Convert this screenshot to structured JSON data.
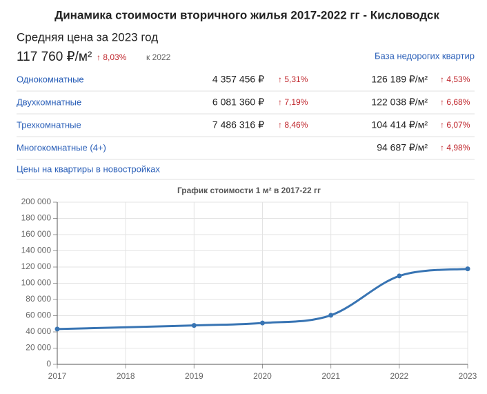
{
  "header": {
    "title": "Динамика стоимости вторичного жилья 2017-2022 гг - Кисловодск",
    "subtitle": "Средняя цена за 2023 год",
    "price": "117 760 ₽/м²",
    "change": "↑ 8,03%",
    "compare": "к 2022",
    "link": "База недорогих квартир"
  },
  "table": {
    "rows": [
      {
        "name": "Однокомнатные",
        "price": "4 357 456 ₽",
        "price_change": "↑ 5,31%",
        "per_m2": "126 189 ₽/м²",
        "per_m2_change": "↑ 4,53%"
      },
      {
        "name": "Двухкомнатные",
        "price": "6 081 360 ₽",
        "price_change": "↑ 7,19%",
        "per_m2": "122 038 ₽/м²",
        "per_m2_change": "↑ 6,68%"
      },
      {
        "name": "Трехкомнатные",
        "price": "7 486 316 ₽",
        "price_change": "↑ 8,46%",
        "per_m2": "104 414 ₽/м²",
        "per_m2_change": "↑ 6,07%"
      },
      {
        "name": "Многокомнатные (4+)",
        "per_m2": "94 687 ₽/м²",
        "per_m2_change": "↑ 4,98%"
      }
    ]
  },
  "footer_link": "Цены на квартиры в новостройках",
  "chart_data": {
    "type": "line",
    "title": "График стоимости 1 м² в 2017-22 гг",
    "x": [
      2017,
      2019,
      2020,
      2021,
      2022,
      2023
    ],
    "series": [
      {
        "color": "#3874b3",
        "values": [
          43500,
          48000,
          51000,
          60500,
          109000,
          117760
        ]
      }
    ],
    "xlim": [
      2017,
      2023
    ],
    "xticks": [
      2017,
      2018,
      2019,
      2020,
      2021,
      2022,
      2023
    ],
    "ylim": [
      0,
      200000
    ],
    "yticks": [
      0,
      {
        "value": 20000,
        "label": "20 000"
      },
      {
        "value": 40000,
        "label": "40 000"
      },
      {
        "value": 60000,
        "label": "60 000"
      },
      {
        "value": 80000,
        "label": "80 000"
      },
      {
        "value": 100000,
        "label": "100 000"
      },
      {
        "value": 120000,
        "label": "120 000"
      },
      {
        "value": 140000,
        "label": "140 000"
      },
      {
        "value": 160000,
        "label": "160 000"
      },
      {
        "value": 180000,
        "label": "180 000"
      },
      {
        "value": 200000,
        "label": "200 000"
      }
    ],
    "grid": true
  }
}
